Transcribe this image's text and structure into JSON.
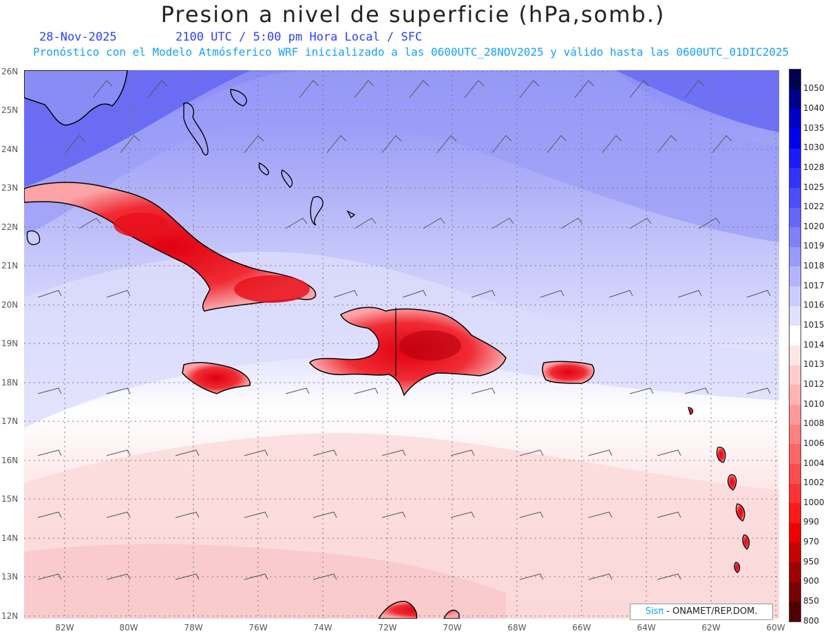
{
  "header": {
    "title": "Presion a nivel de superficie (hPa,somb.)",
    "date": "28-Nov-2025",
    "time_info": "2100 UTC / 5:00 pm Hora Local / SFC",
    "forecast_info": "Pronóstico con el Modelo Atmósferico WRF inicializado a las 0600UTC_28NOV2025 y válido hasta las  0600UTC_01DIC2025"
  },
  "axes": {
    "lat_labels": [
      "26N",
      "25N",
      "24N",
      "23N",
      "22N",
      "21N",
      "20N",
      "19N",
      "18N",
      "17N",
      "16N",
      "15N",
      "14N",
      "13N",
      "12N"
    ],
    "lon_labels": [
      "82W",
      "80W",
      "78W",
      "76W",
      "74W",
      "72W",
      "70W",
      "68W",
      "66W",
      "64W",
      "62W",
      "60W"
    ]
  },
  "colorbar": {
    "labels": [
      "1050",
      "1040",
      "1035",
      "1030",
      "1028",
      "1025",
      "1022",
      "1020",
      "1019",
      "1018",
      "1017",
      "1016",
      "1015",
      "1014",
      "1013",
      "1012",
      "1010",
      "1008",
      "1006",
      "1004",
      "1002",
      "1000",
      "990",
      "970",
      "950",
      "900",
      "850",
      "800"
    ],
    "colors": [
      "#000050",
      "#00008c",
      "#0000c8",
      "#0000f0",
      "#1a1aff",
      "#3333ff",
      "#4d4dff",
      "#6666ff",
      "#8080ff",
      "#9999ff",
      "#b3b3ff",
      "#ccccff",
      "#e0e0ff",
      "#ffffff",
      "#ffe6e6",
      "#ffcccc",
      "#ffb3b3",
      "#ff9999",
      "#ff8080",
      "#ff6666",
      "#ff4d4d",
      "#ff3333",
      "#ff1a1a",
      "#f00000",
      "#c80000",
      "#a00000",
      "#780000",
      "#500000"
    ]
  },
  "credit": {
    "brand": "Sisπ",
    "text": " - ONAMET/REP.DOM."
  }
}
